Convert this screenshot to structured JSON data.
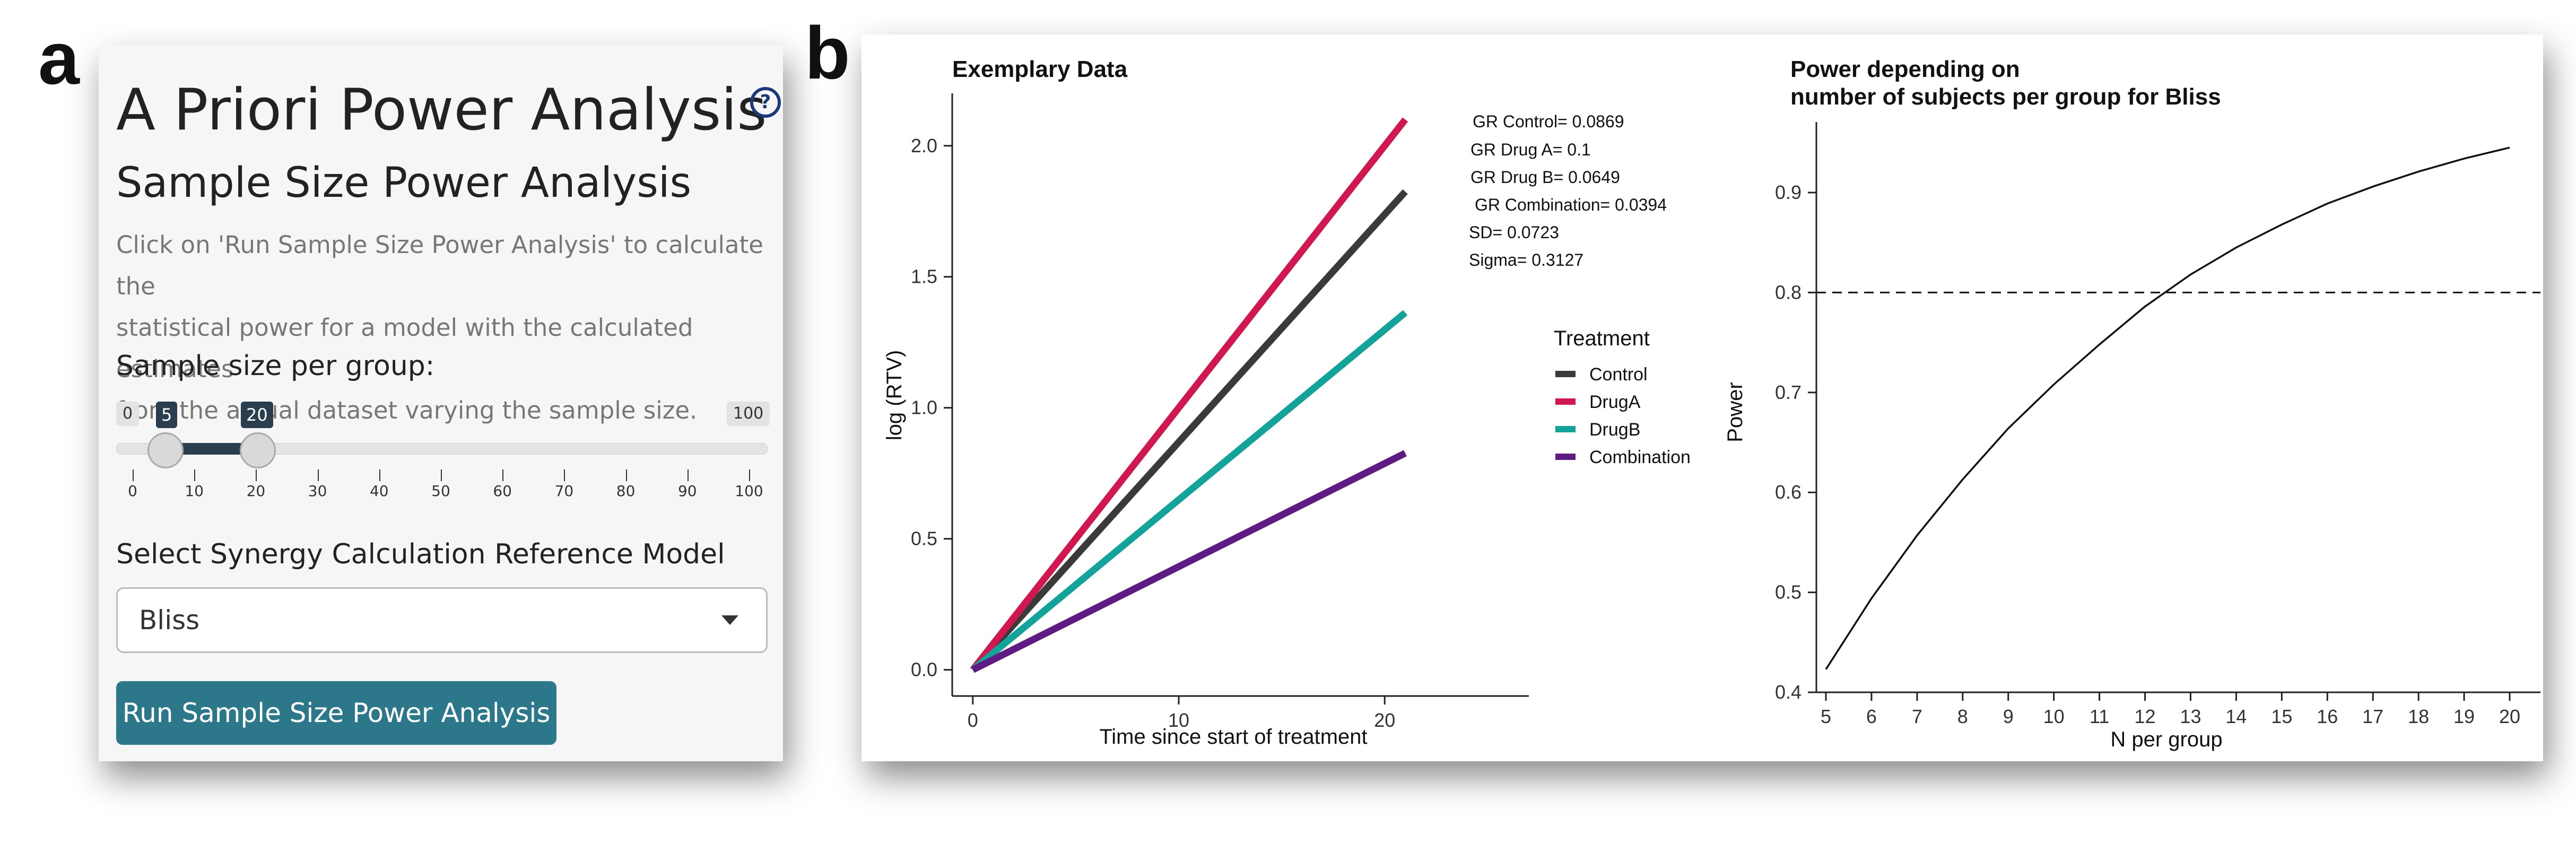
{
  "panel_letters": {
    "a": "a",
    "b": "b"
  },
  "sidebar": {
    "title": "A Priori Power Analysis",
    "help_icon": "?",
    "subtitle": "Sample Size Power Analysis",
    "description_lines": [
      "Click on 'Run Sample Size Power Analysis' to calculate the",
      "statistical power for a model with the calculated estimates",
      "from the actual dataset varying the sample size."
    ],
    "slider": {
      "label": "Sample size per group:",
      "min": "0",
      "max": "100",
      "low_value": "5",
      "high_value": "20",
      "ticks": [
        "0",
        "10",
        "20",
        "30",
        "40",
        "50",
        "60",
        "70",
        "80",
        "90",
        "100"
      ]
    },
    "select": {
      "label": "Select Synergy Calculation Reference Model",
      "value": "Bliss"
    },
    "run_button": "Run Sample Size Power Analysis"
  },
  "colors": {
    "accent_button": "#2c7789",
    "slider_fill": "#2b3e4f",
    "Control": "#3a3a3a",
    "DrugA": "#d0174f",
    "DrugB": "#13a39a",
    "Combination": "#5e1b82"
  },
  "chart_data": [
    {
      "type": "line",
      "title": "Exemplary Data",
      "xlabel": "Time since start of treatment",
      "ylabel": "log (RTV)",
      "xlim": [
        -1,
        27
      ],
      "ylim": [
        -0.1,
        2.2
      ],
      "x_ticks": [
        0,
        10,
        20
      ],
      "y_ticks": [
        "0.0",
        "0.5",
        "1.0",
        "1.5",
        "2.0"
      ],
      "series": [
        {
          "name": "Control",
          "x": [
            0,
            21
          ],
          "y": [
            0,
            1.825
          ]
        },
        {
          "name": "DrugA",
          "x": [
            0,
            21
          ],
          "y": [
            0,
            2.1
          ]
        },
        {
          "name": "DrugB",
          "x": [
            0,
            21
          ],
          "y": [
            0,
            1.363
          ]
        },
        {
          "name": "Combination",
          "x": [
            0,
            21
          ],
          "y": [
            0,
            0.827
          ]
        }
      ],
      "legend_title": "Treatment",
      "legend_position": "right",
      "annotations": [
        "GR Control= 0.0869",
        "GR Drug A= 0.1",
        "GR Drug B= 0.0649",
        "GR Combination= 0.0394",
        "SD= 0.0723",
        "Sigma= 0.3127"
      ]
    },
    {
      "type": "line",
      "title_lines": [
        "Power depending on",
        "number of subjects per group for Bliss"
      ],
      "xlabel": "N per group",
      "ylabel": "Power",
      "xlim": [
        4.4,
        20.8
      ],
      "ylim": [
        0.4,
        0.97
      ],
      "x_ticks": [
        "5",
        "6",
        "7",
        "8",
        "9",
        "10",
        "11",
        "12",
        "13",
        "14",
        "15",
        "16",
        "17",
        "18",
        "19",
        "20"
      ],
      "y_ticks": [
        "0.4",
        "0.5",
        "0.6",
        "0.7",
        "0.8",
        "0.9"
      ],
      "reference_line": 0.8,
      "series": [
        {
          "x": [
            5,
            6,
            7,
            8,
            9,
            10,
            11,
            12,
            13,
            14,
            15,
            16,
            17,
            18,
            19,
            20
          ],
          "y": [
            0.423,
            0.494,
            0.557,
            0.613,
            0.664,
            0.708,
            0.748,
            0.786,
            0.818,
            0.845,
            0.868,
            0.889,
            0.906,
            0.921,
            0.934,
            0.945
          ]
        }
      ]
    }
  ]
}
